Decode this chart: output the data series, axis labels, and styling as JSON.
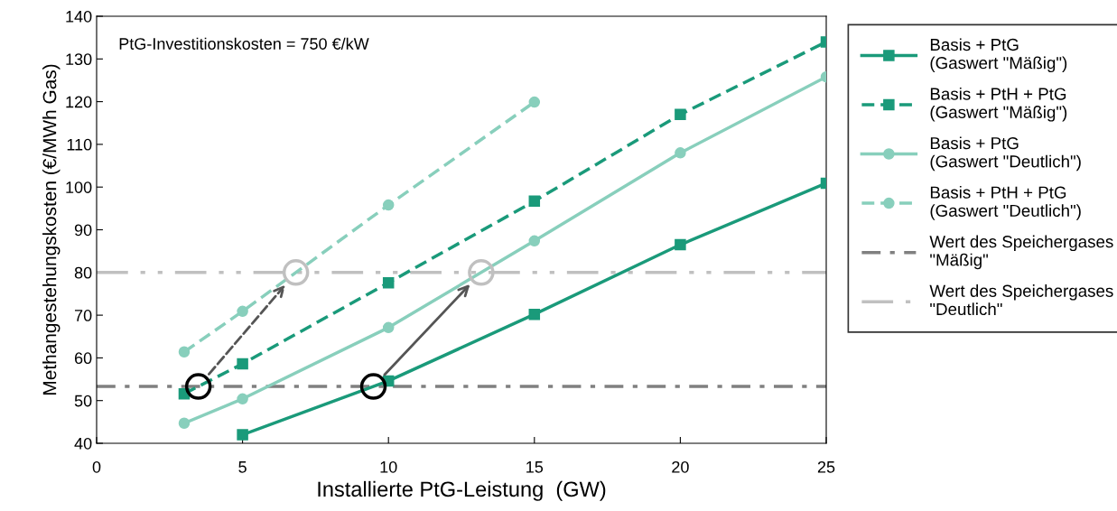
{
  "chart_data": {
    "type": "line",
    "xlabel": "Installierte PtG-Leistung  (GW)",
    "ylabel": "Methangestehungskosten (€/MWh Gas)",
    "x": [
      3,
      5,
      10,
      15,
      20,
      25
    ],
    "series": [
      {
        "name": "Basis + PtG\n(Gaswert \"Mäßig\")",
        "color": "#1a9a7a",
        "marker": "square",
        "line_style": "solid",
        "values": [
          null,
          42,
          54.6,
          70.2,
          86.5,
          100.9
        ]
      },
      {
        "name": "Basis + PtH + PtG\n(Gaswert \"Mäßig\")",
        "color": "#1a9a7a",
        "marker": "square",
        "line_style": "dashed",
        "values": [
          51.6,
          58.6,
          77.6,
          96.7,
          117,
          134
        ]
      },
      {
        "name": "Basis + PtG\n(Gaswert \"Deutlich\")",
        "color": "#88cfbc",
        "marker": "circle",
        "line_style": "solid",
        "values": [
          44.7,
          50.4,
          67.1,
          87.4,
          108,
          125.8
        ]
      },
      {
        "name": "Basis + PtH + PtG\n(Gaswert \"Deutlich\")",
        "color": "#88cfbc",
        "marker": "circle",
        "line_style": "dashed",
        "values": [
          61.4,
          70.9,
          95.8,
          119.9,
          null,
          null
        ]
      }
    ],
    "ref_lines": [
      {
        "axis": "y",
        "value": 53.3,
        "label": "Wert des Speichergases\n\"Mäßig\"",
        "color": "#808080",
        "line_style": "dashdot"
      },
      {
        "axis": "y",
        "value": 80,
        "label": "Wert des Speichergases\n\"Deutlich\"",
        "color": "#c0c0c0",
        "line_style": "dashdotdot"
      }
    ],
    "annotations": [
      "PtG-Investitionskosten = 750 €/kW"
    ],
    "xlim": [
      0,
      25
    ],
    "xticks": [
      0,
      5,
      10,
      15,
      20,
      25
    ],
    "ylim": [
      40,
      140
    ],
    "yticks": [
      40,
      50,
      60,
      70,
      80,
      90,
      100,
      110,
      120,
      130,
      140
    ],
    "grid": false,
    "legend": "right"
  }
}
